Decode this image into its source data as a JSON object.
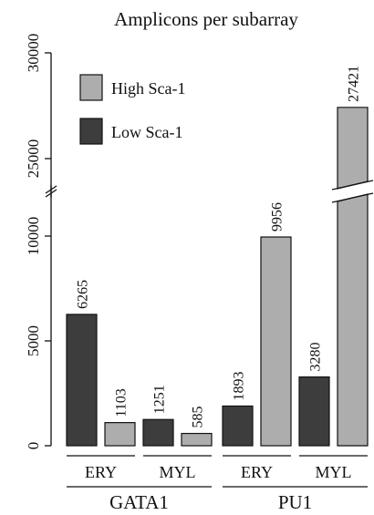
{
  "chart_data": {
    "type": "bar",
    "title": "Amplicons per subarray",
    "y_axis": {
      "broken": true,
      "lower_segment": [
        0,
        10000
      ],
      "upper_segment": [
        25000,
        30000
      ],
      "ticks_lower": [
        0,
        5000,
        10000
      ],
      "ticks_upper": [
        25000,
        30000
      ],
      "tick_labels": [
        "0",
        "5000",
        "10000",
        "25000",
        "30000"
      ]
    },
    "groups": [
      {
        "label": "GATA1",
        "subgroups": [
          "ERY",
          "MYL"
        ]
      },
      {
        "label": "PU1",
        "subgroups": [
          "ERY",
          "MYL"
        ]
      }
    ],
    "categories": [
      "GATA1 ERY",
      "GATA1 MYL",
      "PU1 ERY",
      "PU1 MYL"
    ],
    "series": [
      {
        "name": "Low Sca-1",
        "color": "#3d3d3d",
        "values": [
          6265,
          1251,
          1893,
          3280
        ]
      },
      {
        "name": "High Sca-1",
        "color": "#adadad",
        "values": [
          1103,
          585,
          9956,
          27421
        ]
      }
    ],
    "legend": {
      "position": "top-left",
      "order": [
        "High Sca-1",
        "Low Sca-1"
      ]
    },
    "grid": false
  }
}
